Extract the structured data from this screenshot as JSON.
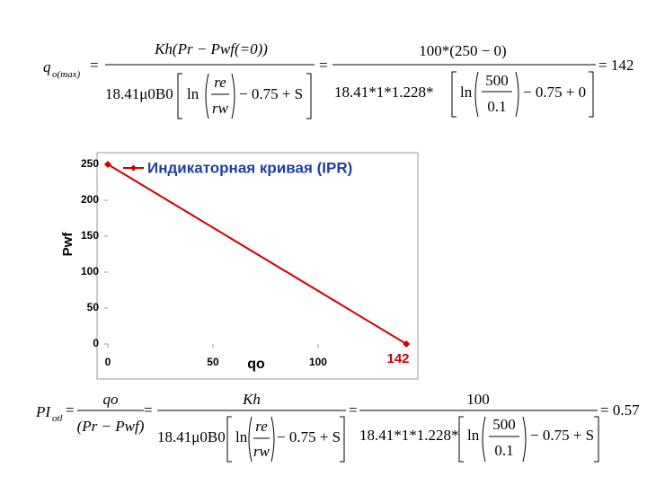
{
  "chart_data": {
    "type": "line",
    "x_label": "qo",
    "y_label": "Pwf",
    "annotation": "142",
    "x": [
      0,
      142
    ],
    "series": [
      {
        "name": "Индикаторная кривая (IPR)",
        "color": "#cc0000",
        "values": [
          250,
          0
        ]
      }
    ],
    "xlim": [
      0,
      146
    ],
    "ylim": [
      0,
      250
    ],
    "xticks": [
      0,
      50,
      100
    ],
    "yticks": [
      0,
      50,
      100,
      150,
      200,
      250
    ],
    "grid": false,
    "title_color": "#1f3f9f"
  },
  "formula_top": {
    "lhs": "q",
    "lhs_sub": "o(max)",
    "eq1": "=",
    "num1": "Kh(Pr − Pwf(=0))",
    "den1_coef": "18.41μ0B0",
    "den1_ln": "ln",
    "den1_frac_num": "re",
    "den1_frac_den": "rw",
    "den1_tail": "− 0.75 + S",
    "eq2": "=",
    "num2": "100*(250 − 0)",
    "den2_coef": "18.41*1*1.228*",
    "den2_ln": "ln",
    "den2_frac_num": "500",
    "den2_frac_den": "0.1",
    "den2_tail": "− 0.75 + 0",
    "result": "= 142"
  },
  "formula_bottom": {
    "lhs": "PI",
    "lhs_sub": "otl",
    "eq1": "=",
    "frac0_num": "qo",
    "frac0_den": "(Pr − Pwf)",
    "eq2": "=",
    "num1": "Kh",
    "den1_coef": "18.41μ0B0",
    "den1_ln": "ln",
    "den1_frac_num": "re",
    "den1_frac_den": "rw",
    "den1_tail": "− 0.75 + S",
    "eq3": "=",
    "num2": "100",
    "den2_coef": "18.41*1*1.228*",
    "den2_ln": "ln",
    "den2_frac_num": "500",
    "den2_frac_den": "0.1",
    "den2_tail": "− 0.75 + S",
    "result": "= 0.57"
  }
}
